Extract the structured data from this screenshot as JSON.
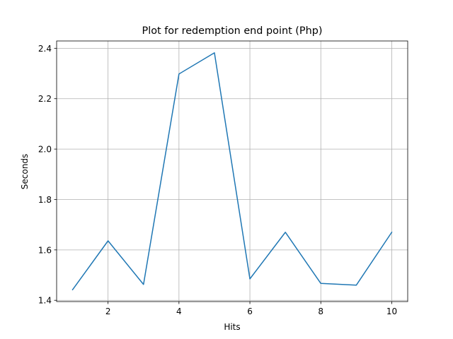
{
  "chart_data": {
    "type": "line",
    "title": "Plot for redemption end point (Php)",
    "xlabel": "Hits",
    "ylabel": "Seconds",
    "x": [
      1,
      2,
      3,
      4,
      5,
      6,
      7,
      8,
      9,
      10
    ],
    "series": [
      {
        "values": [
          1.442,
          1.636,
          1.463,
          2.298,
          2.382,
          1.485,
          1.67,
          1.467,
          1.46,
          1.67
        ],
        "color": "#1f77b4"
      }
    ],
    "xlim": [
      0.55,
      10.45
    ],
    "ylim": [
      1.395,
      2.429
    ],
    "xticks": [
      2,
      4,
      6,
      8,
      10
    ],
    "yticks": [
      1.4,
      1.6,
      1.8,
      2.0,
      2.2,
      2.4
    ],
    "xtick_labels": [
      "2",
      "4",
      "6",
      "8",
      "10"
    ],
    "ytick_labels": [
      "1.4",
      "1.6",
      "1.8",
      "2.0",
      "2.2",
      "2.4"
    ],
    "grid": true,
    "legend": "none"
  }
}
